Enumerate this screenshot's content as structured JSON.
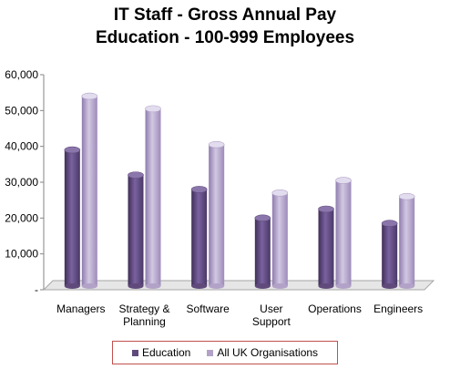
{
  "chart_data": {
    "type": "bar",
    "title": "IT Staff - Gross Annual Pay",
    "subtitle": "Education - 100-999 Employees",
    "categories": [
      [
        "Managers"
      ],
      [
        "Strategy &",
        "Planning"
      ],
      [
        "Software"
      ],
      [
        "User",
        "Support"
      ],
      [
        "Operations"
      ],
      [
        "Engineers"
      ]
    ],
    "series": [
      {
        "name": "Education",
        "values": [
          39000,
          32000,
          28000,
          20000,
          22500,
          18500
        ],
        "color": "#604a7b"
      },
      {
        "name": "All UK Organisations",
        "values": [
          54000,
          50500,
          40500,
          27000,
          30500,
          26000
        ],
        "color": "#b3a2c7"
      }
    ],
    "yticks": [
      "-",
      "10,000",
      "20,000",
      "30,000",
      "40,000",
      "50,000",
      "60,000"
    ],
    "ylim": [
      0,
      60000
    ],
    "xlabel": "",
    "ylabel": "",
    "grid": false,
    "legend_position": "bottom"
  }
}
